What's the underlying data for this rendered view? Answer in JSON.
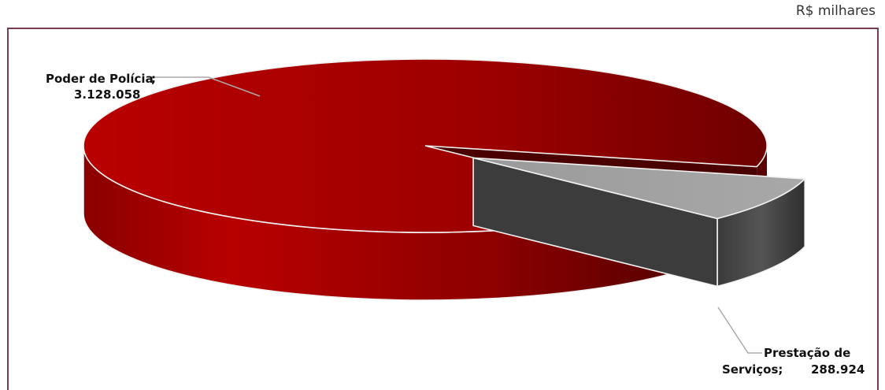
{
  "unit_label": "R$ milhares",
  "chart_data": {
    "type": "pie",
    "style": "3d-exploded",
    "slices": [
      {
        "label": "Poder de Polícia",
        "value": 3128058,
        "display_value": "3.128.058",
        "color": "#b00000"
      },
      {
        "label": "Prestação de Serviços",
        "value": 288924,
        "display_value": "288.924",
        "color": "#9a9a9a"
      }
    ],
    "legend": "none",
    "data_labels": "category; value"
  }
}
